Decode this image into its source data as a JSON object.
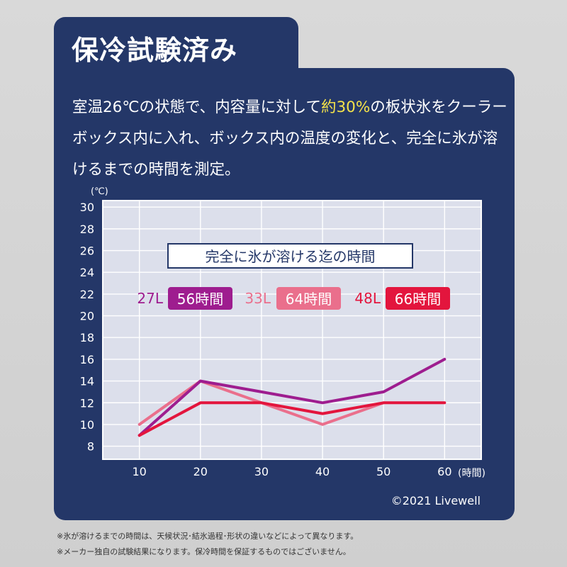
{
  "header": {
    "title": "保冷試験済み"
  },
  "description": {
    "part1": "室温26℃の状態で、内容量に対して",
    "highlight": "約30%",
    "part2": "の板状氷をクーラーボックス内に入れ、ボックス内の温度の変化と、完全に氷が溶けるまでの時間を測定。"
  },
  "chart_data": {
    "type": "line",
    "title": "完全に氷が溶ける迄の時間",
    "xlabel": "(時間)",
    "ylabel": "(℃)",
    "x": [
      10,
      20,
      30,
      40,
      50,
      60
    ],
    "x_ticks": [
      10,
      20,
      30,
      40,
      50,
      60
    ],
    "y_ticks": [
      8,
      10,
      12,
      14,
      16,
      18,
      20,
      22,
      24,
      26,
      28,
      30
    ],
    "xlim": [
      4,
      66
    ],
    "ylim": [
      6.8,
      30.6
    ],
    "grid": true,
    "series": [
      {
        "name": "27L",
        "badge": "56時間",
        "color": "#9e1d8f",
        "x": [
          10,
          20,
          30,
          40,
          50,
          60
        ],
        "values": [
          9,
          14,
          13,
          12,
          13,
          16
        ]
      },
      {
        "name": "33L",
        "badge": "64時間",
        "color": "#ea6f8c",
        "x": [
          10,
          20,
          30,
          40,
          50
        ],
        "values": [
          10,
          14,
          12,
          10,
          12
        ]
      },
      {
        "name": "48L",
        "badge": "66時間",
        "color": "#e3153d",
        "x": [
          10,
          20,
          30,
          40,
          50,
          60
        ],
        "values": [
          9,
          12,
          12,
          11,
          12,
          12
        ]
      }
    ]
  },
  "copyright": "©2021 Livewell",
  "footnotes": [
    "※氷が溶けるまでの時間は、天候状況･結氷過程･形状の違いなどによって異なります。",
    "※メーカー独自の試験結果になります。保冷時間を保証するものではございません。"
  ]
}
